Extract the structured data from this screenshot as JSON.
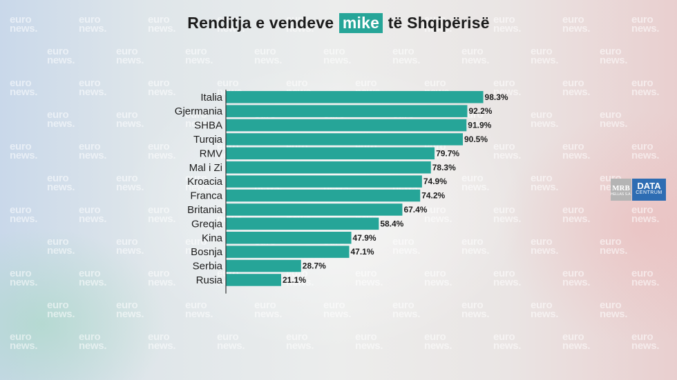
{
  "title": {
    "before": "Renditja e vendeve",
    "highlight": "mike",
    "after": "të Shqipërisë"
  },
  "watermark": {
    "line1": "euro",
    "line2": "news."
  },
  "logo": {
    "mrb_main": "MRB",
    "mrb_sub": "HELLAS S.A.",
    "datacentrum_main": "DATA",
    "datacentrum_sub": "CENTRUM"
  },
  "colors": {
    "bar": "#26a598",
    "highlight": "#26a598",
    "axis": "#333333"
  },
  "chart_data": {
    "type": "bar",
    "orientation": "horizontal",
    "title": "Renditja e vendeve mike të Shqipërisë",
    "categories": [
      "Italia",
      "Gjermania",
      "SHBA",
      "Turqia",
      "RMV",
      "Mal i Zi",
      "Kroacia",
      "Franca",
      "Britania",
      "Greqia",
      "Kina",
      "Bosnja",
      "Serbia",
      "Rusia"
    ],
    "values": [
      98.3,
      92.2,
      91.9,
      90.5,
      79.7,
      78.3,
      74.9,
      74.2,
      67.4,
      58.4,
      47.9,
      47.1,
      28.7,
      21.1
    ],
    "value_labels": [
      "98.3%",
      "92.2%",
      "91.9%",
      "90.5%",
      "79.7%",
      "78.3%",
      "74.9%",
      "74.2%",
      "67.4%",
      "58.4%",
      "47.9%",
      "47.1%",
      "28.7%",
      "21.1%"
    ],
    "unit": "%",
    "xlim": [
      0,
      100
    ],
    "grid": false,
    "legend": "none"
  }
}
